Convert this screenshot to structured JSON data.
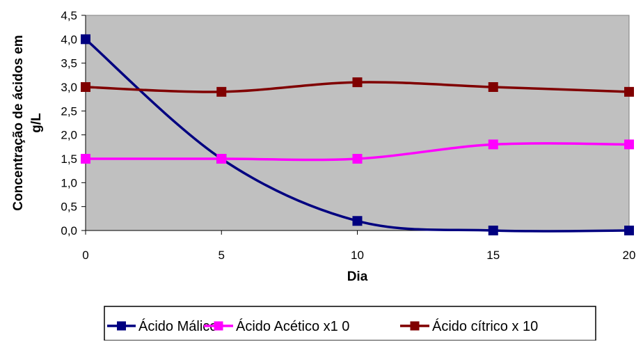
{
  "chart_data": {
    "type": "line",
    "title": "",
    "xlabel": "Dia",
    "ylabel": "Concentração de ácidos em g/L",
    "ylabel_lines": [
      "Concentração de ácidos em",
      "g/L"
    ],
    "x": [
      0,
      5,
      10,
      15,
      20
    ],
    "x_tick_labels": [
      "0",
      "5",
      "10",
      "15",
      "20"
    ],
    "xlim": [
      0,
      20
    ],
    "ylim": [
      0,
      4.5
    ],
    "y_ticks": [
      0,
      0.5,
      1.0,
      1.5,
      2.0,
      2.5,
      3.0,
      3.5,
      4.0,
      4.5
    ],
    "y_tick_labels": [
      "0,0",
      "0,5",
      "1,0",
      "1,5",
      "2,0",
      "2,5",
      "3,0",
      "3,5",
      "4,0",
      "4,5"
    ],
    "grid": false,
    "plot_background": "#c0c0c0",
    "legend_position": "bottom",
    "smoothed": true,
    "series": [
      {
        "name": "Ácido Málico",
        "color": "#000080",
        "marker": "square",
        "values": [
          4.0,
          1.5,
          0.2,
          0.0,
          0.0
        ]
      },
      {
        "name": "Ácido Acético x1 0",
        "color": "#ff00ff",
        "marker": "square",
        "values": [
          1.5,
          1.5,
          1.5,
          1.8,
          1.8
        ]
      },
      {
        "name": "Ácido cítrico x 10",
        "color": "#800000",
        "marker": "square",
        "values": [
          3.0,
          2.9,
          3.1,
          3.0,
          2.9
        ]
      }
    ]
  }
}
